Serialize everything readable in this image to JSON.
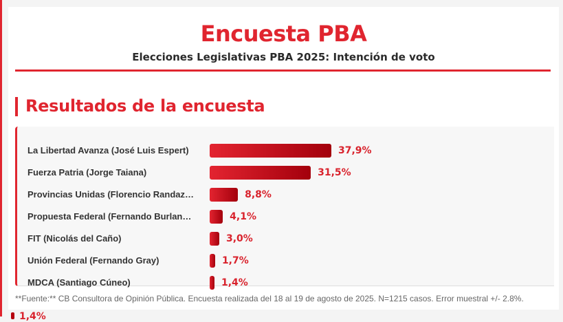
{
  "header": {
    "title": "Encuesta PBA",
    "subtitle": "Elecciones Legislativas PBA 2025: Intención de voto"
  },
  "section": {
    "title": "Resultados de la encuesta"
  },
  "chart_data": {
    "type": "bar",
    "orientation": "horizontal",
    "categories": [
      "La Libertad Avanza (José Luis Espert)",
      "Fuerza Patria (Jorge Taiana)",
      "Provincias Unidas (Florencio Randaz…",
      "Propuesta Federal (Fernando Burlan…",
      "FIT (Nicolás del Caño)",
      "Unión Federal (Fernando Gray)",
      "MDCA (Santiago Cúneo)"
    ],
    "values": [
      37.9,
      31.5,
      8.8,
      4.1,
      3.0,
      1.7,
      1.4
    ],
    "value_labels": [
      "37,9%",
      "31,5%",
      "8,8%",
      "4,1%",
      "3,0%",
      "1,7%",
      "1,4%"
    ],
    "bar_colors": [
      "#e32430",
      "#a3000c"
    ],
    "label_color": "#d9232d"
  },
  "footnote": "**Fuente:** CB Consultora de Opinión Pública. Encuesta realizada del 18 al 19 de agosto de 2025. N=1215 casos. Error muestral +/- 2.8%.",
  "partial_next": {
    "value_label": "1,4%"
  },
  "colors": {
    "accent": "#e0252f",
    "background": "#f4f4f4"
  }
}
